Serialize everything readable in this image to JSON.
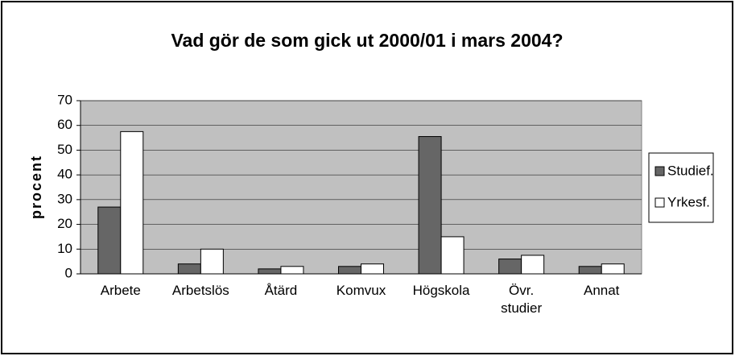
{
  "chart_data": {
    "type": "bar",
    "title": "Vad gör de som gick ut 2000/01 i mars 2004?",
    "y_label": "procent",
    "categories": [
      "Arbete",
      "Arbetslös",
      "Åtärd",
      "Komvux",
      "Högskola",
      "Övr. studier",
      "Annat"
    ],
    "series": [
      {
        "name": "Studief.",
        "color": "#666666",
        "values": [
          27,
          4,
          2,
          3,
          55.5,
          6,
          3
        ]
      },
      {
        "name": "Yrkesf.",
        "color": "#ffffff",
        "values": [
          57.5,
          10,
          3,
          4,
          15,
          7.5,
          4
        ]
      }
    ],
    "ylim": [
      0,
      70
    ],
    "yticks": [
      0,
      10,
      20,
      30,
      40,
      50,
      60,
      70
    ],
    "grid": true,
    "legend": "right"
  }
}
